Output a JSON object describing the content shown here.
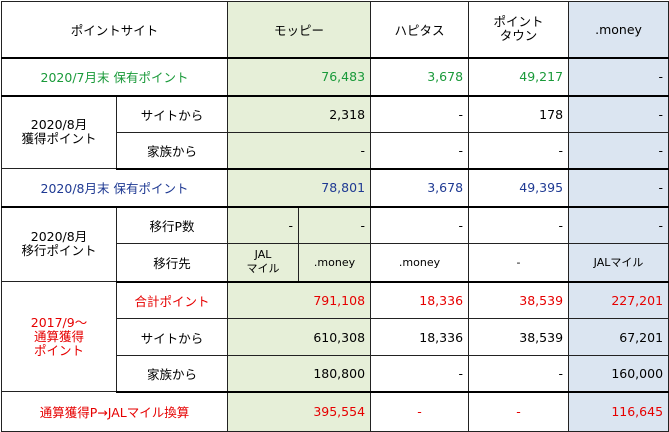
{
  "header": {
    "col0": "ポイントサイト",
    "moppy": "モッピー",
    "hapitas": "ハピタス",
    "pointtown": "ポイント\nタウン",
    "money": ".money"
  },
  "row_july": {
    "label": "2020/7月末 保有ポイント",
    "moppy": "76,483",
    "hapitas": "3,678",
    "pointtown": "49,217",
    "money": "-"
  },
  "aug_earned": {
    "label": "2020/8月\n獲得ポイント",
    "site": {
      "label": "サイトから",
      "moppy": "2,318",
      "hapitas": "-",
      "pointtown": "178",
      "money": "-"
    },
    "family": {
      "label": "家族から",
      "moppy": "-",
      "hapitas": "-",
      "pointtown": "-",
      "money": "-"
    }
  },
  "row_aug": {
    "label": "2020/8月末 保有ポイント",
    "moppy": "78,801",
    "hapitas": "3,678",
    "pointtown": "49,395",
    "money": "-"
  },
  "aug_transfer": {
    "label": "2020/8月\n移行ポイント",
    "count": {
      "label": "移行P数",
      "moppy_a": "-",
      "moppy_b": "-",
      "hapitas": "-",
      "pointtown": "-",
      "money": "-"
    },
    "dest": {
      "label": "移行先",
      "moppy_a": "JAL\nマイル",
      "moppy_b": ".money",
      "hapitas": ".money",
      "pointtown": "-",
      "money": "JALマイル"
    }
  },
  "cumulative": {
    "label": "2017/9〜\n通算獲得\nポイント",
    "total": {
      "label": "合計ポイント",
      "moppy": "791,108",
      "hapitas": "18,336",
      "pointtown": "38,539",
      "money": "227,201"
    },
    "site": {
      "label": "サイトから",
      "moppy": "610,308",
      "hapitas": "18,336",
      "pointtown": "38,539",
      "money": "67,201"
    },
    "family": {
      "label": "家族から",
      "moppy": "180,800",
      "hapitas": "-",
      "pointtown": "-",
      "money": "160,000"
    }
  },
  "conversion": {
    "label": "通算獲得P→JALマイル換算",
    "moppy": "395,554",
    "hapitas": "-",
    "pointtown": "-",
    "money": "116,645"
  }
}
